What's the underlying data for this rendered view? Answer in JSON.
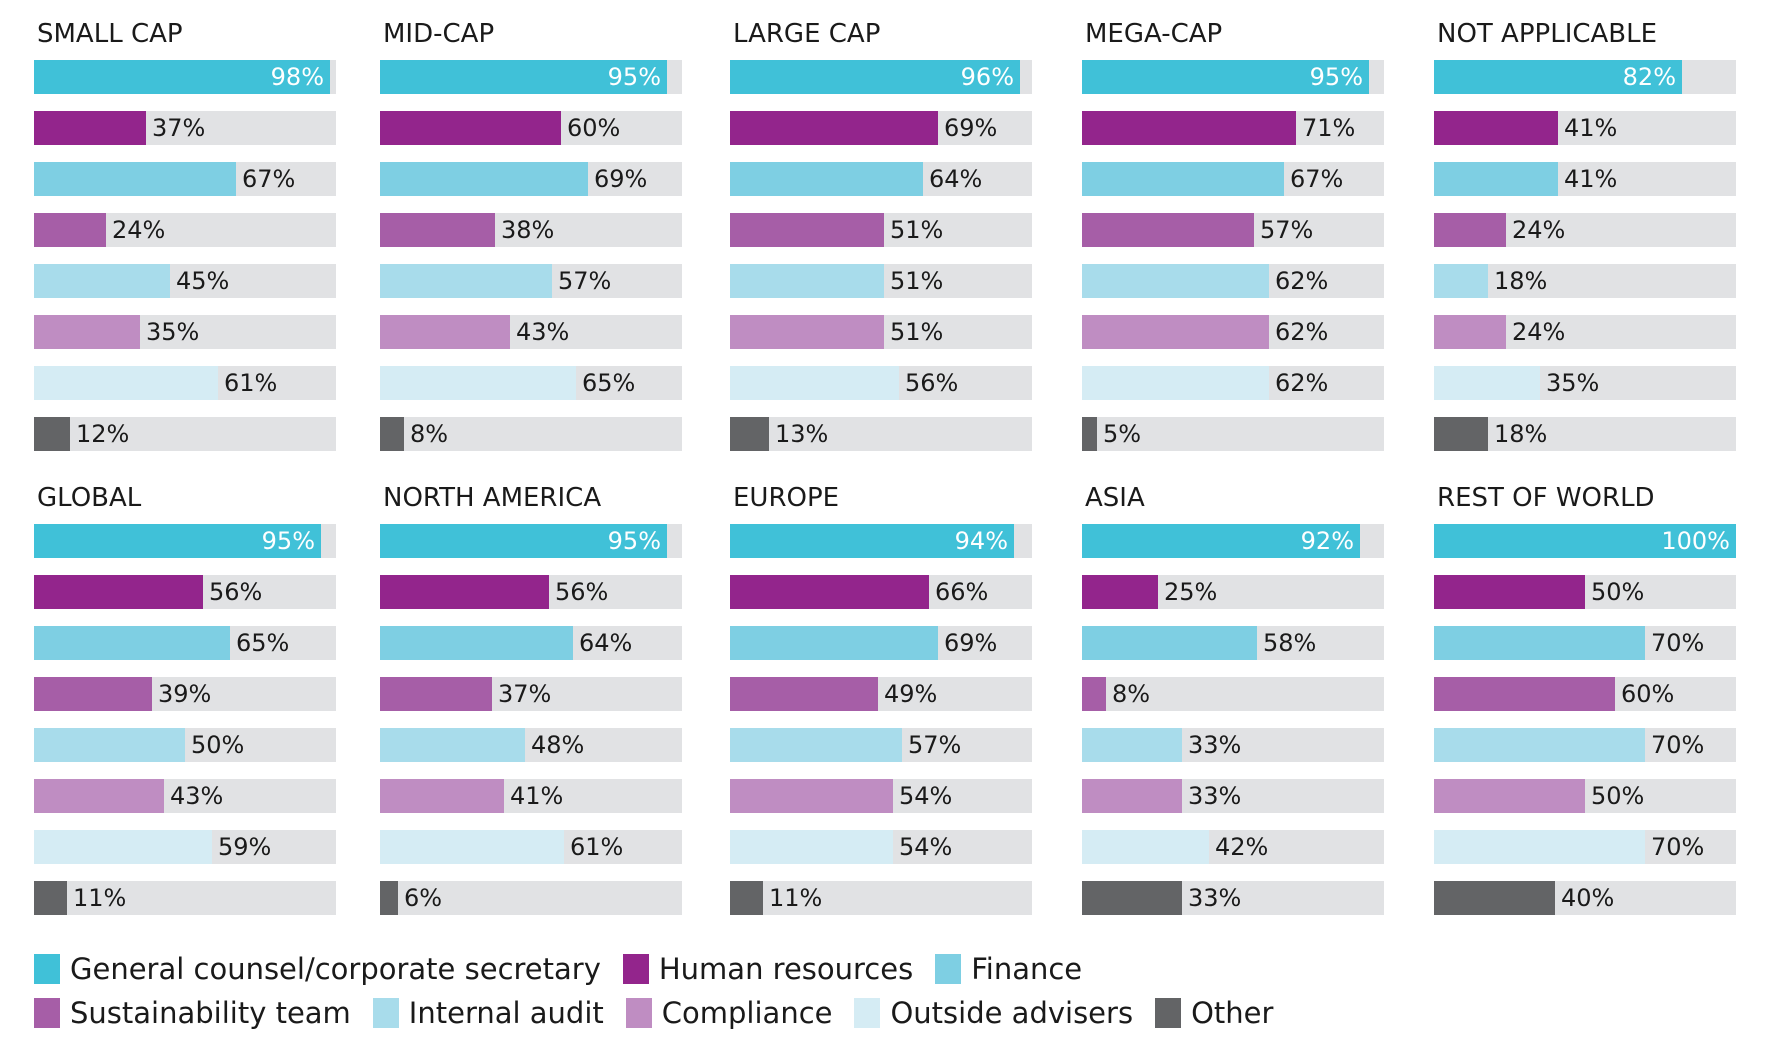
{
  "chart_data": {
    "type": "bar",
    "orientation": "horizontal",
    "xlim": [
      0,
      100
    ],
    "unit": "%",
    "series": [
      {
        "name": "General counsel/corporate secretary",
        "color": "#40c1d8"
      },
      {
        "name": "Human resources",
        "color": "#93258c"
      },
      {
        "name": "Finance",
        "color": "#7ecfe3"
      },
      {
        "name": "Sustainability team",
        "color": "#a65ea7"
      },
      {
        "name": "Internal audit",
        "color": "#a8dceb"
      },
      {
        "name": "Compliance",
        "color": "#bf8dc2"
      },
      {
        "name": "Outside advisers",
        "color": "#d5ecf4"
      },
      {
        "name": "Other",
        "color": "#636466"
      }
    ],
    "panels": [
      {
        "title": "SMALL CAP",
        "values": [
          98,
          37,
          67,
          24,
          45,
          35,
          61,
          12
        ]
      },
      {
        "title": "MID-CAP",
        "values": [
          95,
          60,
          69,
          38,
          57,
          43,
          65,
          8
        ]
      },
      {
        "title": "LARGE CAP",
        "values": [
          96,
          69,
          64,
          51,
          51,
          51,
          56,
          13
        ]
      },
      {
        "title": "MEGA-CAP",
        "values": [
          95,
          71,
          67,
          57,
          62,
          62,
          62,
          5
        ]
      },
      {
        "title": "NOT APPLICABLE",
        "values": [
          82,
          41,
          41,
          24,
          18,
          24,
          35,
          18
        ]
      },
      {
        "title": "GLOBAL",
        "values": [
          95,
          56,
          65,
          39,
          50,
          43,
          59,
          11
        ]
      },
      {
        "title": "NORTH AMERICA",
        "values": [
          95,
          56,
          64,
          37,
          48,
          41,
          61,
          6
        ]
      },
      {
        "title": "EUROPE",
        "values": [
          94,
          66,
          69,
          49,
          57,
          54,
          54,
          11
        ]
      },
      {
        "title": "ASIA",
        "values": [
          92,
          25,
          58,
          8,
          33,
          33,
          42,
          33
        ]
      },
      {
        "title": "REST OF WORLD",
        "values": [
          100,
          50,
          70,
          60,
          70,
          50,
          70,
          40
        ]
      }
    ]
  }
}
